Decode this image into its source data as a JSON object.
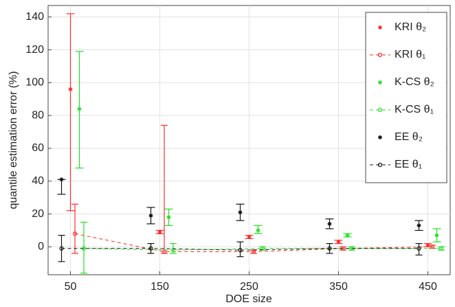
{
  "chart_data": {
    "type": "errorbar",
    "x_label": "DOE size",
    "y_label": "quantile estimation error (%)",
    "xlim": [
      25,
      475
    ],
    "ylim": [
      -17,
      147
    ],
    "xticks": [
      50,
      150,
      250,
      350,
      450
    ],
    "yticks": [
      0,
      20,
      40,
      60,
      80,
      100,
      120,
      140
    ],
    "grid": true,
    "legend": "upper right",
    "series": [
      {
        "name": "KRI θ₂",
        "color": "#ff2a2a",
        "marker": "star",
        "line": false,
        "x": [
          50,
          150,
          250,
          350,
          450
        ],
        "values": [
          96,
          9,
          6,
          3,
          1
        ],
        "lower": [
          22,
          8,
          5,
          2,
          0
        ],
        "upper": [
          142,
          10,
          7,
          4,
          2
        ]
      },
      {
        "name": "KRI θ₁",
        "color": "#ff2a2a",
        "marker": "circle",
        "line": true,
        "x": [
          55,
          155,
          255,
          355,
          455
        ],
        "values": [
          8,
          -3,
          -3,
          -1,
          0
        ],
        "lower": [
          -4,
          -4,
          -4,
          -2,
          -1
        ],
        "upper": [
          26,
          74,
          -2,
          0,
          1
        ]
      },
      {
        "name": "K-CS θ₂",
        "color": "#22e022",
        "marker": "star",
        "line": false,
        "x": [
          60,
          160,
          260,
          360,
          460
        ],
        "values": [
          84,
          18,
          10,
          7,
          7
        ],
        "lower": [
          48,
          13,
          8,
          6,
          3
        ],
        "upper": [
          119,
          23,
          13,
          8,
          11
        ]
      },
      {
        "name": "K-CS θ₁",
        "color": "#22e022",
        "marker": "circle",
        "line": true,
        "x": [
          65,
          165,
          265,
          365,
          465
        ],
        "values": [
          -1,
          -2,
          -1,
          -1,
          -1
        ],
        "lower": [
          -16,
          -4,
          -2,
          -2,
          -2
        ],
        "upper": [
          15,
          2,
          0,
          0,
          0
        ]
      },
      {
        "name": "EE θ₂",
        "color": "#111111",
        "marker": "star",
        "line": false,
        "x": [
          40,
          140,
          240,
          340,
          440
        ],
        "values": [
          41,
          19,
          21,
          14,
          13
        ],
        "lower": [
          32,
          14,
          16,
          11,
          10
        ],
        "upper": [
          41,
          24,
          26,
          17,
          16
        ]
      },
      {
        "name": "EE θ₁",
        "color": "#111111",
        "marker": "circle",
        "line": true,
        "x": [
          40,
          140,
          240,
          340,
          440
        ],
        "values": [
          -1,
          -1,
          -2,
          -1,
          -1
        ],
        "lower": [
          -9,
          -4,
          -6,
          -4,
          -5
        ],
        "upper": [
          7,
          2,
          3,
          2,
          2
        ]
      }
    ]
  }
}
